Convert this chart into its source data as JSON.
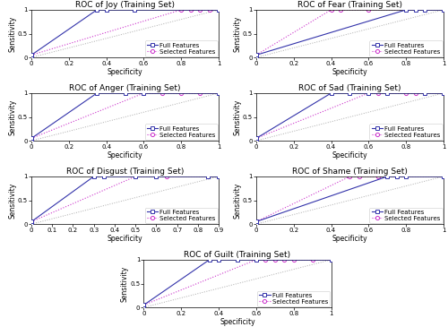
{
  "subplots": [
    {
      "title": "ROC of Joy (Training Set)",
      "full_x": [
        0,
        0.0,
        0.35,
        0.4,
        0.55,
        1.0
      ],
      "full_y": [
        0,
        0.05,
        1.0,
        1.0,
        1.0,
        1.0
      ],
      "sel_x": [
        0,
        0.0,
        0.8,
        0.85,
        0.9,
        0.95,
        1.0
      ],
      "sel_y": [
        0,
        0.05,
        1.0,
        1.0,
        1.0,
        1.0,
        1.0
      ],
      "xlim": [
        0,
        1
      ],
      "ylim": [
        0,
        1
      ],
      "xticks": [
        0,
        0.2,
        0.4,
        0.6,
        0.8,
        1.0
      ],
      "yticks": [
        0,
        0.5,
        1
      ]
    },
    {
      "title": "ROC of Fear (Training Set)",
      "full_x": [
        0,
        0.0,
        0.8,
        0.85,
        0.9,
        1.0
      ],
      "full_y": [
        0,
        0.05,
        1.0,
        1.0,
        1.0,
        1.0
      ],
      "sel_x": [
        0,
        0.0,
        0.4,
        0.45,
        0.6,
        1.0
      ],
      "sel_y": [
        0,
        0.05,
        1.0,
        1.0,
        1.0,
        1.0
      ],
      "xlim": [
        0,
        1
      ],
      "ylim": [
        0,
        1
      ],
      "xticks": [
        0,
        0.2,
        0.4,
        0.6,
        0.8,
        1.0
      ],
      "yticks": [
        0,
        0.5,
        1
      ]
    },
    {
      "title": "ROC of Anger (Training Set)",
      "full_x": [
        0,
        0.0,
        0.35,
        0.5,
        0.6,
        1.0
      ],
      "full_y": [
        0,
        0.05,
        1.0,
        1.0,
        1.0,
        1.0
      ],
      "sel_x": [
        0,
        0.0,
        0.6,
        0.7,
        0.8,
        0.9,
        1.0
      ],
      "sel_y": [
        0,
        0.05,
        1.0,
        1.0,
        1.0,
        1.0,
        1.0
      ],
      "xlim": [
        0,
        1
      ],
      "ylim": [
        0,
        1
      ],
      "xticks": [
        0,
        0.2,
        0.4,
        0.6,
        0.8,
        1.0
      ],
      "yticks": [
        0,
        0.5,
        1
      ]
    },
    {
      "title": "ROC of Sad (Training Set)",
      "full_x": [
        0,
        0.0,
        0.4,
        0.5,
        0.6,
        0.7,
        0.9,
        1.0
      ],
      "full_y": [
        0,
        0.05,
        1.0,
        1.0,
        1.0,
        1.0,
        1.0,
        1.0
      ],
      "sel_x": [
        0,
        0.0,
        0.6,
        0.65,
        0.8,
        0.85,
        0.9,
        1.0
      ],
      "sel_y": [
        0,
        0.05,
        1.0,
        1.0,
        1.0,
        1.0,
        1.0,
        1.0
      ],
      "xlim": [
        0,
        1
      ],
      "ylim": [
        0,
        1
      ],
      "xticks": [
        0,
        0.2,
        0.4,
        0.6,
        0.8,
        1.0
      ],
      "yticks": [
        0,
        0.5,
        1
      ]
    },
    {
      "title": "ROC of Disgust (Training Set)",
      "full_x": [
        0,
        0.0,
        0.3,
        0.35,
        0.5,
        0.6,
        0.85,
        0.9
      ],
      "full_y": [
        0,
        0.05,
        1.0,
        1.0,
        1.0,
        1.0,
        1.0,
        1.0
      ],
      "sel_x": [
        0,
        0.0,
        0.5,
        0.6,
        0.65,
        0.85,
        0.9
      ],
      "sel_y": [
        0,
        0.05,
        1.0,
        1.0,
        1.0,
        1.0,
        1.0
      ],
      "xlim": [
        0,
        0.9
      ],
      "ylim": [
        0,
        1
      ],
      "xticks": [
        0,
        0.1,
        0.2,
        0.3,
        0.4,
        0.5,
        0.6,
        0.7,
        0.8,
        0.9
      ],
      "yticks": [
        0,
        0.5,
        1
      ]
    },
    {
      "title": "ROC of Shame (Training Set)",
      "full_x": [
        0,
        0.0,
        0.7,
        0.75,
        0.8,
        1.0
      ],
      "full_y": [
        0,
        0.05,
        1.0,
        1.0,
        1.0,
        1.0
      ],
      "sel_x": [
        0,
        0.0,
        0.5,
        0.55,
        0.65,
        0.75,
        1.0
      ],
      "sel_y": [
        0,
        0.05,
        1.0,
        1.0,
        1.0,
        1.0,
        1.0
      ],
      "xlim": [
        0,
        1
      ],
      "ylim": [
        0,
        1
      ],
      "xticks": [
        0,
        0.2,
        0.4,
        0.6,
        0.8,
        1.0
      ],
      "yticks": [
        0,
        0.5,
        1
      ]
    },
    {
      "title": "ROC of Guilt (Training Set)",
      "full_x": [
        0,
        0.0,
        0.35,
        0.4,
        0.5,
        0.6,
        1.0
      ],
      "full_y": [
        0,
        0.05,
        1.0,
        1.0,
        1.0,
        1.0,
        1.0
      ],
      "sel_x": [
        0,
        0.0,
        0.6,
        0.65,
        0.7,
        0.75,
        0.8,
        0.9,
        1.0
      ],
      "sel_y": [
        0,
        0.05,
        1.0,
        1.0,
        1.0,
        1.0,
        1.0,
        1.0,
        1.0
      ],
      "xlim": [
        0,
        1
      ],
      "ylim": [
        0,
        1
      ],
      "xticks": [
        0,
        0.2,
        0.4,
        0.6,
        0.8,
        1.0
      ],
      "yticks": [
        0,
        0.5,
        1
      ]
    }
  ],
  "full_color": "#3333aa",
  "sel_color": "#cc33cc",
  "diag_color": "#aaaaaa",
  "full_label": "Full Features",
  "sel_label": "Selected Features",
  "xlabel": "Specificity",
  "ylabel": "Sensitivity",
  "title_fontsize": 6.5,
  "label_fontsize": 5.5,
  "tick_fontsize": 5,
  "legend_fontsize": 5,
  "marker_size": 3,
  "linewidth": 0.8
}
